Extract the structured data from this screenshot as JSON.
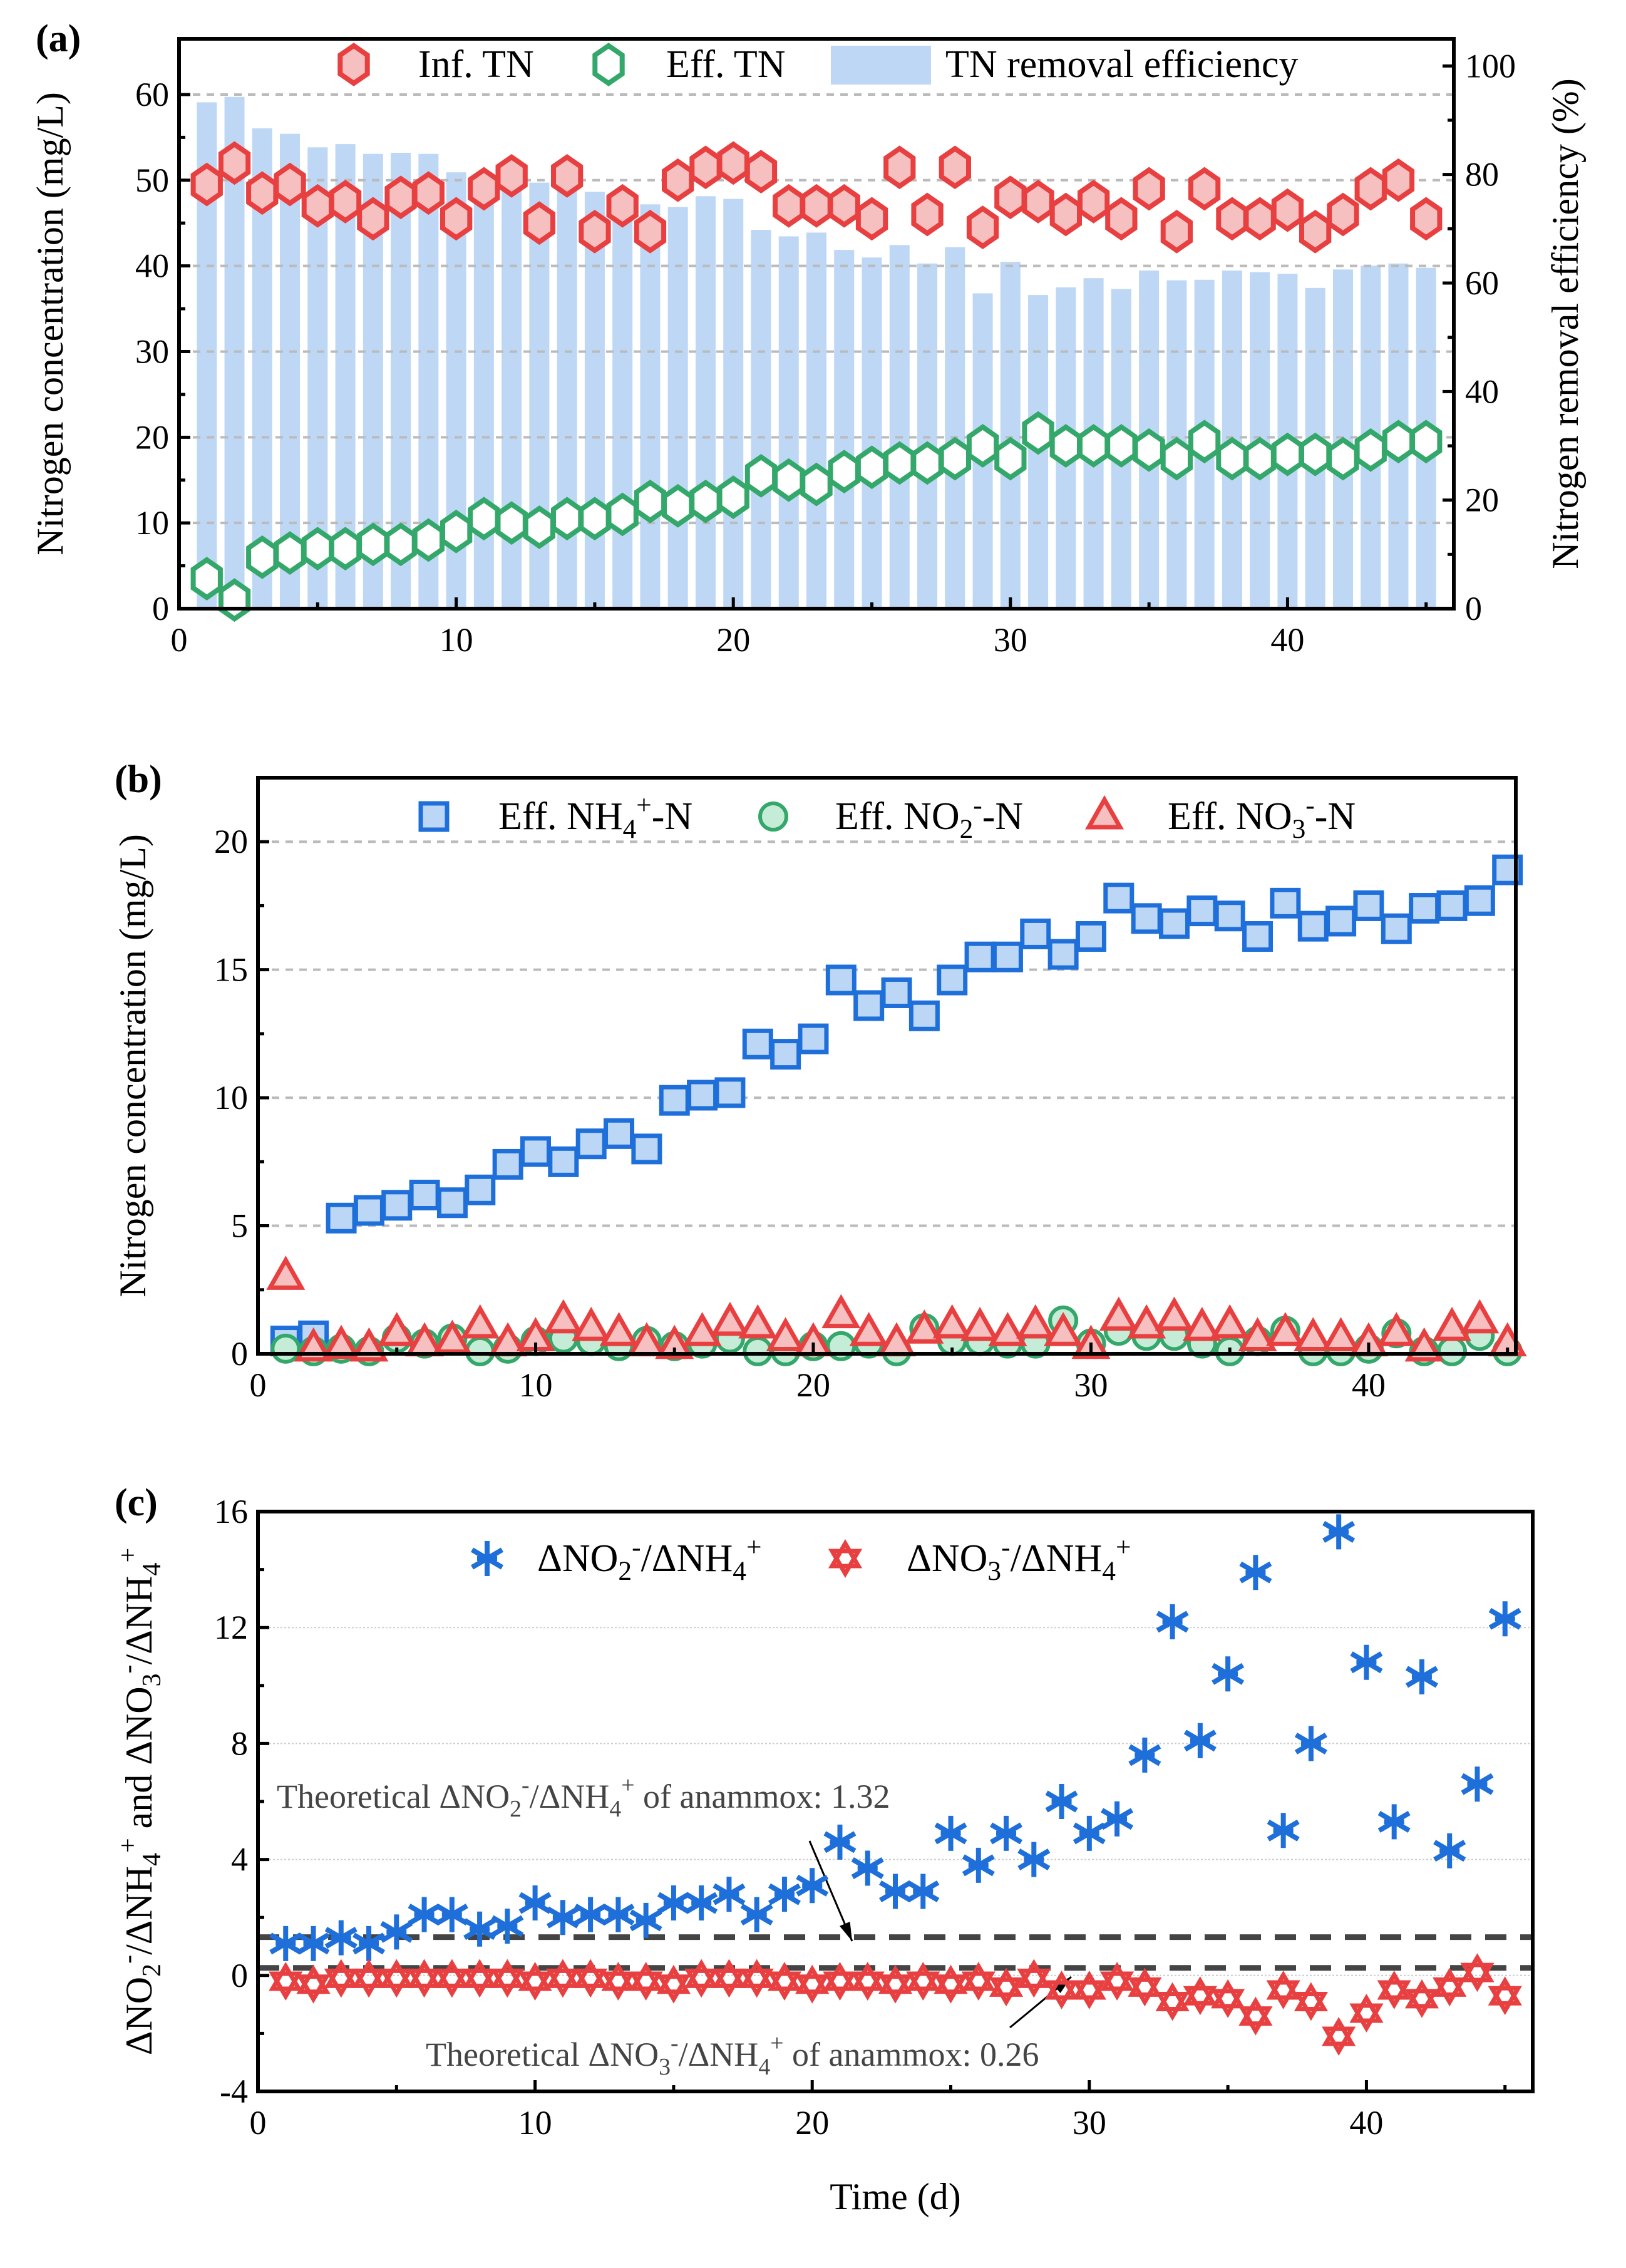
{
  "chart_data": [
    {
      "panel_label": "(a)",
      "type": "bar+scatter",
      "xlabel": "",
      "ylabel": "Nitrogen concentration (mg/L)",
      "ylabel_right": "Nitrogen removal efficiency (%)",
      "xlim": [
        0,
        46
      ],
      "ylim": [
        0,
        66.5
      ],
      "ylim_right": [
        0,
        105
      ],
      "xticks": [
        0,
        10,
        20,
        30,
        40
      ],
      "yticks": [
        0,
        10,
        20,
        30,
        40,
        50,
        60
      ],
      "yticks_right": [
        0,
        20,
        40,
        60,
        80,
        100
      ],
      "grid": "horizontal dashed",
      "legend": "top",
      "x": [
        1,
        2,
        3,
        4,
        5,
        6,
        7,
        8,
        9,
        10,
        11,
        12,
        13,
        14,
        15,
        16,
        17,
        18,
        19,
        20,
        21,
        22,
        23,
        24,
        25,
        26,
        27,
        28,
        29,
        30,
        31,
        32,
        33,
        34,
        35,
        36,
        37,
        38,
        39,
        40,
        41,
        42,
        43,
        44,
        45
      ],
      "series": [
        {
          "name": [
            {
              "t": "TN removal efficiency"
            }
          ],
          "kind": "bar",
          "axis": "right",
          "color": "#bdd7f5",
          "values": [
            93.3,
            94.3,
            88.5,
            87.5,
            85,
            85.6,
            83.8,
            84,
            83.8,
            80.4,
            79.5,
            79,
            78.5,
            77.5,
            76.8,
            75.5,
            74.5,
            74,
            76,
            75.5,
            69.8,
            68.6,
            69.3,
            66.1,
            64.7,
            67,
            63.6,
            66.6,
            58.1,
            63.9,
            57.8,
            59.2,
            60.9,
            58.9,
            62.3,
            60.5,
            60.6,
            62.3,
            62,
            61.7,
            59.1,
            62.5,
            63.2,
            63.6,
            62.8
          ]
        },
        {
          "name": [
            {
              "t": "Inf. TN"
            }
          ],
          "kind": "hexagon",
          "axis": "left",
          "color": "#e84040",
          "fill": "#f7c0c0",
          "values": [
            49.5,
            52,
            48.5,
            49.5,
            47,
            47.5,
            45.5,
            48,
            48.5,
            45.5,
            49,
            50.5,
            45,
            50.5,
            44,
            47,
            44,
            50,
            51.5,
            52,
            51,
            47,
            47,
            47,
            45.5,
            51.5,
            46,
            51.5,
            44.5,
            48,
            47.5,
            46,
            47.5,
            45.5,
            49,
            44,
            49,
            45.5,
            45.5,
            46.5,
            44,
            46,
            49,
            50,
            45.5
          ]
        },
        {
          "name": [
            {
              "t": "Eff. TN"
            }
          ],
          "kind": "hexagon",
          "axis": "left",
          "color": "#34a86a",
          "fill": "#ffffff",
          "values": [
            3.5,
            1,
            6,
            6.5,
            7,
            7,
            7.5,
            7.5,
            8,
            9,
            10.5,
            10,
            9.5,
            10.5,
            10.5,
            11,
            12.5,
            12,
            12.5,
            13,
            15.5,
            15,
            14.5,
            16,
            16.5,
            17,
            17,
            17.5,
            19,
            17.5,
            20.5,
            19,
            19,
            19,
            18.5,
            17.5,
            19.5,
            17.5,
            17.5,
            18,
            18,
            17.5,
            18.5,
            19.5,
            19.5
          ]
        }
      ]
    },
    {
      "panel_label": "(b)",
      "type": "scatter",
      "xlabel": "",
      "ylabel": "Nitrogen concentration (mg/L)",
      "xlim": [
        0,
        45.3
      ],
      "ylim": [
        0,
        22.5
      ],
      "xticks": [
        0,
        10,
        20,
        30,
        40
      ],
      "yticks": [
        0,
        5,
        10,
        15,
        20
      ],
      "grid": "horizontal dashed",
      "legend": "top",
      "x": [
        1,
        2,
        3,
        4,
        5,
        6,
        7,
        8,
        9,
        10,
        11,
        12,
        13,
        14,
        15,
        16,
        17,
        18,
        19,
        20,
        21,
        22,
        23,
        24,
        25,
        26,
        27,
        28,
        29,
        30,
        31,
        32,
        33,
        34,
        35,
        36,
        37,
        38,
        39,
        40,
        41,
        42,
        43,
        44,
        45
      ],
      "series": [
        {
          "name": [
            {
              "t": "Eff. NH"
            },
            {
              "t": "4",
              "s": "sub"
            },
            {
              "t": "+",
              "s": "sup"
            },
            {
              "t": "-N"
            }
          ],
          "kind": "square",
          "color": "#1e6fd9",
          "fill": "#bcd6f5",
          "values": [
            0.5,
            0.7,
            5.3,
            5.6,
            5.8,
            6.2,
            5.9,
            6.4,
            7.4,
            7.9,
            7.5,
            8.2,
            8.6,
            8.0,
            9.9,
            10.1,
            10.2,
            12.1,
            11.7,
            12.3,
            14.6,
            13.6,
            14.1,
            13.2,
            14.6,
            15.5,
            15.5,
            16.4,
            15.6,
            16.3,
            17.8,
            17.0,
            16.8,
            17.3,
            17.1,
            16.3,
            17.6,
            16.7,
            16.9,
            17.5,
            16.6,
            17.4,
            17.5,
            17.7,
            18.9
          ]
        },
        {
          "name": [
            {
              "t": "Eff. NO"
            },
            {
              "t": "2",
              "s": "sub"
            },
            {
              "t": "-",
              "s": "sup"
            },
            {
              "t": "-N"
            }
          ],
          "kind": "circle",
          "color": "#34a86a",
          "fill": "#c4ecd6",
          "values": [
            0.2,
            0.1,
            0.2,
            0.1,
            0.6,
            0.4,
            0.6,
            0.1,
            0.2,
            0.5,
            0.6,
            0.5,
            0.3,
            0.5,
            0.3,
            0.4,
            0.6,
            0.1,
            0.1,
            0.3,
            0.3,
            0.4,
            0.1,
            1.0,
            0.5,
            0.5,
            0.4,
            0.4,
            1.3,
            0.4,
            0.9,
            0.7,
            0.7,
            0.4,
            0.1,
            0.5,
            0.9,
            0.1,
            0.1,
            0.2,
            0.8,
            0.1,
            0.1,
            0.7,
            0.1
          ]
        },
        {
          "name": [
            {
              "t": "Eff. NO"
            },
            {
              "t": "3",
              "s": "sub"
            },
            {
              "t": "-",
              "s": "sup"
            },
            {
              "t": "-N"
            }
          ],
          "kind": "triangle",
          "color": "#e84040",
          "fill": "#f7c0c0",
          "values": [
            3.0,
            0.2,
            0.3,
            0.2,
            0.8,
            0.4,
            0.5,
            1.1,
            0.4,
            0.6,
            1.3,
            1.0,
            0.8,
            0.4,
            0.3,
            0.8,
            1.2,
            1.1,
            0.6,
            0.4,
            1.5,
            0.8,
            0.4,
            0.9,
            1.1,
            1.0,
            0.8,
            1.1,
            0.8,
            0.3,
            1.4,
            1.1,
            1.4,
            1.0,
            1.1,
            0.6,
            0.8,
            0.6,
            0.6,
            0.4,
            0.8,
            0.2,
            1.0,
            1.3,
            0.4
          ]
        }
      ]
    },
    {
      "panel_label": "(c)",
      "type": "scatter",
      "xlabel": "Time (d)",
      "ylabel": [
        {
          "t": "ΔNO"
        },
        {
          "t": "2",
          "s": "sub"
        },
        {
          "t": "-",
          "s": "sup"
        },
        {
          "t": "/ΔNH"
        },
        {
          "t": "4",
          "s": "sub"
        },
        {
          "t": "+",
          "s": "sup"
        },
        {
          "t": " and ΔNO"
        },
        {
          "t": "3",
          "s": "sub"
        },
        {
          "t": "-",
          "s": "sup"
        },
        {
          "t": "/ΔNH"
        },
        {
          "t": "4",
          "s": "sub"
        },
        {
          "t": "+",
          "s": "sup"
        }
      ],
      "xlim": [
        0,
        46
      ],
      "ylim": [
        -4,
        16
      ],
      "xticks": [
        0,
        10,
        20,
        30,
        40
      ],
      "yticks": [
        -4,
        0,
        4,
        8,
        12,
        16
      ],
      "grid": "horizontal dotted",
      "legend": "top",
      "x": [
        1,
        2,
        3,
        4,
        5,
        6,
        7,
        8,
        9,
        10,
        11,
        12,
        13,
        14,
        15,
        16,
        17,
        18,
        19,
        20,
        21,
        22,
        23,
        24,
        25,
        26,
        27,
        28,
        29,
        30,
        31,
        32,
        33,
        34,
        35,
        36,
        37,
        38,
        39,
        40,
        41,
        42,
        43,
        44,
        45
      ],
      "series": [
        {
          "name": [
            {
              "t": "ΔNO"
            },
            {
              "t": "2",
              "s": "sub"
            },
            {
              "t": "-",
              "s": "sup"
            },
            {
              "t": "/ΔNH"
            },
            {
              "t": "4",
              "s": "sub"
            },
            {
              "t": "+",
              "s": "sup"
            }
          ],
          "kind": "asterisk",
          "color": "#1e6fd9",
          "values": [
            1.1,
            1.1,
            1.3,
            1.1,
            1.5,
            2.1,
            2.1,
            1.6,
            1.7,
            2.5,
            2.0,
            2.1,
            2.1,
            1.9,
            2.5,
            2.5,
            2.8,
            2.1,
            2.8,
            3.1,
            4.6,
            3.7,
            2.9,
            2.9,
            4.9,
            3.8,
            4.9,
            4.0,
            6.0,
            4.9,
            5.4,
            7.6,
            12.2,
            8.1,
            10.4,
            13.9,
            5.0,
            8.0,
            15.3,
            10.8,
            5.3,
            10.3,
            4.3,
            6.6,
            12.3
          ]
        },
        {
          "name": [
            {
              "t": "ΔNO"
            },
            {
              "t": "3",
              "s": "sub"
            },
            {
              "t": "-",
              "s": "sup"
            },
            {
              "t": "/ΔNH"
            },
            {
              "t": "4",
              "s": "sub"
            },
            {
              "t": "+",
              "s": "sup"
            }
          ],
          "kind": "hexagram",
          "color": "#e84040",
          "values": [
            -0.2,
            -0.3,
            -0.1,
            -0.1,
            -0.1,
            -0.1,
            -0.1,
            -0.1,
            -0.1,
            -0.2,
            -0.1,
            -0.1,
            -0.2,
            -0.2,
            -0.3,
            -0.1,
            -0.1,
            -0.1,
            -0.2,
            -0.3,
            -0.2,
            -0.2,
            -0.3,
            -0.2,
            -0.3,
            -0.2,
            -0.4,
            -0.1,
            -0.5,
            -0.5,
            -0.2,
            -0.4,
            -0.9,
            -0.7,
            -0.8,
            -1.4,
            -0.5,
            -0.9,
            -2.1,
            -1.3,
            -0.5,
            -0.8,
            -0.4,
            0.1,
            -0.7
          ]
        }
      ],
      "reference_lines": [
        {
          "y": 1.32,
          "label": [
            {
              "t": "Theoretical ΔNO"
            },
            {
              "t": "2",
              "s": "sub"
            },
            {
              "t": "-",
              "s": "sup"
            },
            {
              "t": "/ΔNH"
            },
            {
              "t": "4",
              "s": "sub"
            },
            {
              "t": "+",
              "s": "sup"
            },
            {
              "t": " of anammox: 1.32"
            }
          ]
        },
        {
          "y": 0.26,
          "label": [
            {
              "t": "Theoretical ΔNO"
            },
            {
              "t": "3",
              "s": "sub"
            },
            {
              "t": "-",
              "s": "sup"
            },
            {
              "t": "/ΔNH"
            },
            {
              "t": "4",
              "s": "sub"
            },
            {
              "t": "+",
              "s": "sup"
            },
            {
              "t": " of anammox: 0.26"
            }
          ]
        }
      ]
    }
  ]
}
